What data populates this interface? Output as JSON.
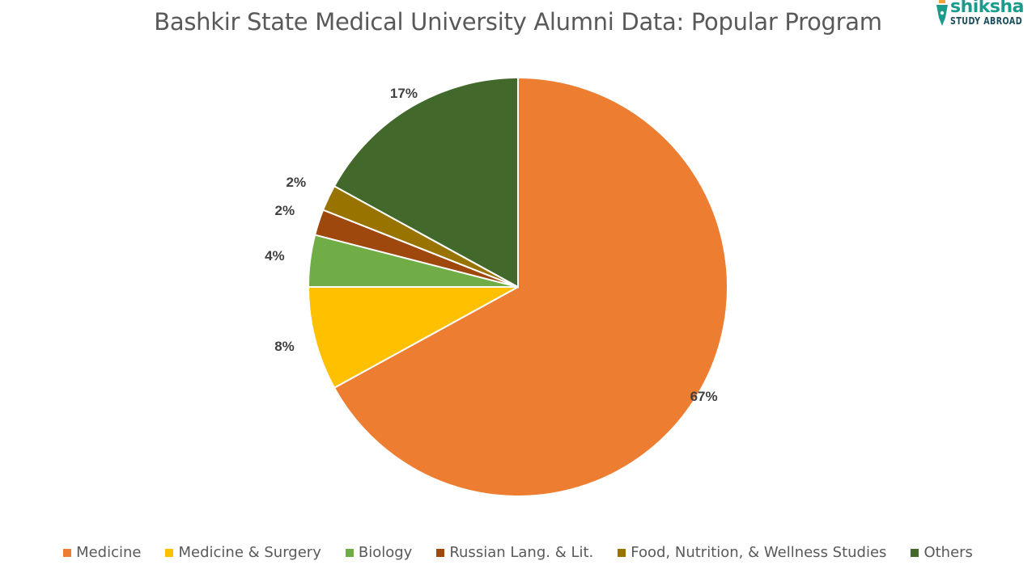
{
  "title": "Bashkir State Medical University Alumni Data: Popular Program",
  "logo": {
    "brand": "shiksha",
    "sub": "STUDY ABROAD",
    "color": "#1a9b8c"
  },
  "chart_data": {
    "type": "pie",
    "title": "Bashkir State Medical University Alumni Data: Popular Program",
    "categories": [
      "Medicine",
      "Medicine & Surgery",
      "Biology",
      "Russian Lang. & Lit.",
      "Food, Nutrition, & Wellness Studies",
      "Others"
    ],
    "values": [
      67,
      8,
      4,
      2,
      2,
      17
    ],
    "labels": [
      "67%",
      "8%",
      "4%",
      "2%",
      "2%",
      "17%"
    ],
    "colors": [
      "#ED7D31",
      "#FFC000",
      "#70AD47",
      "#9E480E",
      "#997300",
      "#43682B"
    ],
    "legend_position": "bottom",
    "start_angle_deg": 0,
    "direction": "clockwise"
  },
  "legend": [
    {
      "label": "Medicine",
      "color": "#ED7D31"
    },
    {
      "label": "Medicine & Surgery",
      "color": "#FFC000"
    },
    {
      "label": "Biology",
      "color": "#70AD47"
    },
    {
      "label": "Russian Lang. & Lit.",
      "color": "#9E480E"
    },
    {
      "label": "Food, Nutrition, & Wellness Studies",
      "color": "#997300"
    },
    {
      "label": "Others",
      "color": "#43682B"
    }
  ]
}
